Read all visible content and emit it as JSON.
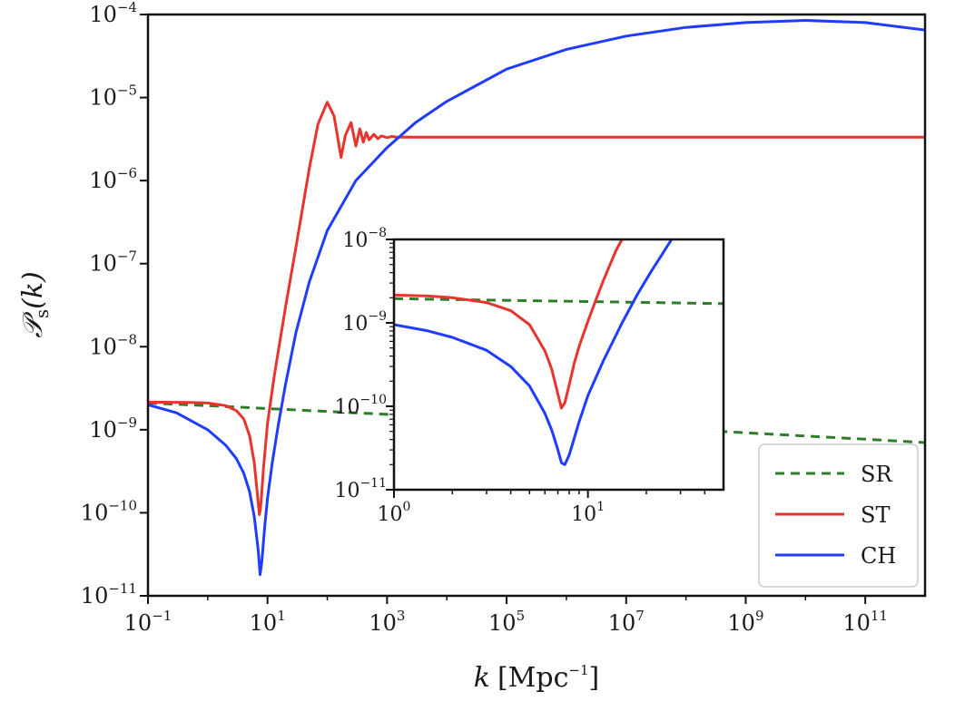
{
  "chart_data": [
    {
      "type": "line",
      "role": "main",
      "xscale": "log",
      "yscale": "log",
      "xlim": [
        0.1,
        1000000000000
      ],
      "ylim": [
        1e-11,
        0.0001
      ],
      "xticks": [
        {
          "base": "10",
          "exp": "−1"
        },
        {
          "base": "10",
          "exp": "1"
        },
        {
          "base": "10",
          "exp": "3"
        },
        {
          "base": "10",
          "exp": "5"
        },
        {
          "base": "10",
          "exp": "7"
        },
        {
          "base": "10",
          "exp": "9"
        },
        {
          "base": "10",
          "exp": "11"
        }
      ],
      "yticks": [
        {
          "base": "10",
          "exp": "−11"
        },
        {
          "base": "10",
          "exp": "−10"
        },
        {
          "base": "10",
          "exp": "−9"
        },
        {
          "base": "10",
          "exp": "−8"
        },
        {
          "base": "10",
          "exp": "−7"
        },
        {
          "base": "10",
          "exp": "−6"
        },
        {
          "base": "10",
          "exp": "−5"
        },
        {
          "base": "10",
          "exp": "−4"
        }
      ],
      "xlabel": {
        "var": "k",
        "unit": "Mpc",
        "unit_exp": "−1"
      },
      "ylabel": {
        "var": "𝒫",
        "sub": "s",
        "arg": "(k)"
      },
      "legend": {
        "position": "lower-right"
      },
      "series": [
        {
          "name": "SR",
          "color": "#2e7d2a",
          "style": "dashed",
          "x": [
            0.1,
            1,
            10,
            100,
            1000,
            10000,
            100000,
            1000000,
            10000000,
            100000000,
            1000000000,
            10000000000,
            100000000000,
            1000000000000
          ],
          "y": [
            2.1e-09,
            1.95e-09,
            1.8e-09,
            1.66e-09,
            1.53e-09,
            1.41e-09,
            1.3e-09,
            1.19e-09,
            1.09e-09,
            1e-09,
            9.2e-10,
            8.4e-10,
            7.7e-10,
            7e-10
          ]
        },
        {
          "name": "ST",
          "color": "#e8342c",
          "style": "solid",
          "x": [
            0.1,
            0.5,
            1,
            2,
            3,
            4,
            5,
            6,
            6.8,
            7.3,
            7.6,
            8,
            8.5,
            10,
            13,
            20,
            30,
            50,
            70,
            100,
            130,
            170,
            200,
            250,
            300,
            350,
            400,
            450,
            500,
            600,
            700,
            800,
            1000,
            1200,
            1500,
            2000,
            3000,
            10000,
            100000,
            1000000000000
          ],
          "y": [
            2.15e-09,
            2.13e-09,
            2.1e-09,
            1.95e-09,
            1.7e-09,
            1.35e-09,
            8.5e-10,
            4e-10,
            1.6e-10,
            9.5e-11,
            1.1e-10,
            1.7e-10,
            3.2e-10,
            1.2e-09,
            4.5e-09,
            3e-08,
            1.6e-07,
            1.4e-06,
            4.8e-06,
            8.8e-06,
            6e-06,
            1.9e-06,
            3.5e-06,
            5e-06,
            2.6e-06,
            4.2e-06,
            2.9e-06,
            3.8e-06,
            3.1e-06,
            3.6e-06,
            3.2e-06,
            3.45e-06,
            3.3e-06,
            3.4e-06,
            3.32e-06,
            3.35e-06,
            3.34e-06,
            3.34e-06,
            3.34e-06,
            3.34e-06
          ]
        },
        {
          "name": "CH",
          "color": "#1f3cff",
          "style": "solid",
          "x": [
            0.1,
            0.3,
            1,
            2,
            3,
            4,
            5,
            6,
            7,
            7.5,
            8,
            9,
            10,
            12,
            15,
            20,
            30,
            50,
            100,
            300,
            1000,
            3000,
            10000,
            100000,
            1000000,
            10000000,
            100000000,
            1000000000,
            10000000000,
            100000000000,
            1000000000000
          ],
          "y": [
            2e-09,
            1.6e-09,
            1e-09,
            6.5e-10,
            4.5e-10,
            3e-10,
            1.8e-10,
            9e-11,
            3.5e-11,
            1.8e-11,
            2.5e-11,
            7e-11,
            1.5e-10,
            4e-10,
            1.1e-09,
            3.5e-09,
            1.5e-08,
            6e-08,
            2.5e-07,
            1e-06,
            2.5e-06,
            5e-06,
            9e-06,
            2.2e-05,
            3.8e-05,
            5.5e-05,
            7e-05,
            8e-05,
            8.5e-05,
            8e-05,
            6.5e-05
          ]
        }
      ]
    },
    {
      "type": "line",
      "role": "inset",
      "xscale": "log",
      "yscale": "log",
      "xlim": [
        1,
        50
      ],
      "ylim": [
        1e-11,
        1e-08
      ],
      "xticks": [
        {
          "base": "10",
          "exp": "0"
        },
        {
          "base": "10",
          "exp": "1"
        }
      ],
      "yticks": [
        {
          "base": "10",
          "exp": "−11"
        },
        {
          "base": "10",
          "exp": "−10"
        },
        {
          "base": "10",
          "exp": "−9"
        },
        {
          "base": "10",
          "exp": "−8"
        }
      ],
      "series": [
        {
          "name": "SR",
          "color": "#2e7d2a",
          "style": "dashed",
          "x": [
            1,
            50
          ],
          "y": [
            1.95e-09,
            1.7e-09
          ]
        },
        {
          "name": "ST",
          "color": "#e8342c",
          "style": "solid",
          "x": [
            1,
            1.5,
            2,
            3,
            4,
            5,
            6,
            6.5,
            7,
            7.3,
            7.6,
            8,
            8.5,
            9,
            10,
            11,
            12,
            13,
            14,
            15
          ],
          "y": [
            2.15e-09,
            2.1e-09,
            2e-09,
            1.75e-09,
            1.4e-09,
            9.5e-10,
            4.6e-10,
            2.8e-10,
            1.4e-10,
            9.5e-11,
            1.1e-10,
            1.8e-10,
            3.3e-10,
            5.2e-10,
            1.05e-09,
            1.9e-09,
            3.2e-09,
            5e-09,
            7.5e-09,
            1e-08
          ]
        },
        {
          "name": "CH",
          "color": "#1f3cff",
          "style": "solid",
          "x": [
            1,
            1.5,
            2,
            3,
            4,
            5,
            6,
            6.5,
            7,
            7.3,
            7.6,
            8,
            9,
            10,
            12,
            15,
            18,
            21,
            24,
            27
          ],
          "y": [
            9.5e-10,
            8e-10,
            6.7e-10,
            4.7e-10,
            3e-10,
            1.75e-10,
            8.2e-11,
            5.2e-11,
            3e-11,
            2.1e-11,
            2e-11,
            2.6e-11,
            6.5e-11,
            1.35e-10,
            3.5e-10,
            1e-09,
            2.2e-09,
            4e-09,
            6.5e-09,
            1e-08
          ]
        }
      ]
    }
  ]
}
